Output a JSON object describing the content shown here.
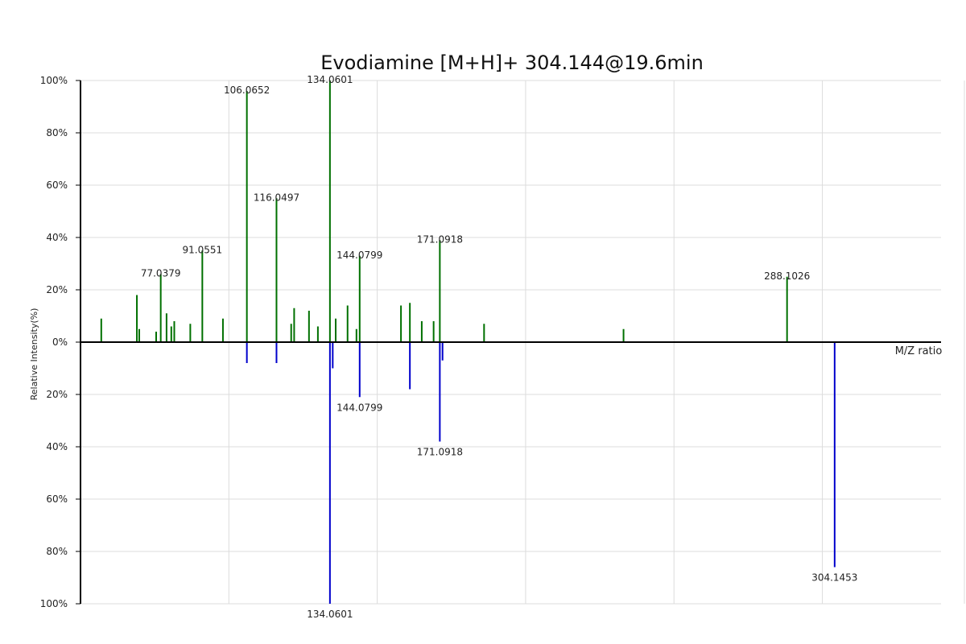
{
  "chart_data": {
    "type": "bar",
    "title": "Evodiamine [M+H]+ 304.144@19.6min",
    "xlabel": "M/Z ratio",
    "ylabel": "Relative Intensity(%)",
    "xlim": [
      50,
      340
    ],
    "ylim": [
      -100,
      100
    ],
    "y_ticks": [
      "100%",
      "80%",
      "60%",
      "40%",
      "20%",
      "0%",
      "20%",
      "40%",
      "60%",
      "80%",
      "100%"
    ],
    "grid": true,
    "colors": {
      "top": "#007000",
      "bottom": "#0000cc"
    },
    "series": [
      {
        "name": "",
        "direction": "up",
        "points": [
          {
            "mz": 57.0,
            "intensity": 9
          },
          {
            "mz": 69.0,
            "intensity": 18
          },
          {
            "mz": 69.8,
            "intensity": 5
          },
          {
            "mz": 75.5,
            "intensity": 4
          },
          {
            "mz": 77.0379,
            "intensity": 26,
            "label": "77.0379"
          },
          {
            "mz": 79.0,
            "intensity": 11
          },
          {
            "mz": 80.6,
            "intensity": 6
          },
          {
            "mz": 81.6,
            "intensity": 8
          },
          {
            "mz": 87.0,
            "intensity": 7
          },
          {
            "mz": 91.0551,
            "intensity": 35,
            "label": "91.0551"
          },
          {
            "mz": 98.0,
            "intensity": 9
          },
          {
            "mz": 106.0652,
            "intensity": 96,
            "label": "106.0652"
          },
          {
            "mz": 116.0497,
            "intensity": 55,
            "label": "116.0497"
          },
          {
            "mz": 121.0,
            "intensity": 7
          },
          {
            "mz": 122.0,
            "intensity": 13
          },
          {
            "mz": 127.0,
            "intensity": 12
          },
          {
            "mz": 130.0,
            "intensity": 6
          },
          {
            "mz": 134.0601,
            "intensity": 100,
            "label": "134.0601"
          },
          {
            "mz": 136.0,
            "intensity": 9
          },
          {
            "mz": 140.0,
            "intensity": 14
          },
          {
            "mz": 143.0,
            "intensity": 5
          },
          {
            "mz": 144.0799,
            "intensity": 33,
            "label": "144.0799"
          },
          {
            "mz": 158.0,
            "intensity": 14
          },
          {
            "mz": 161.0,
            "intensity": 15
          },
          {
            "mz": 165.0,
            "intensity": 8
          },
          {
            "mz": 169.0,
            "intensity": 8
          },
          {
            "mz": 171.0918,
            "intensity": 39,
            "label": "171.0918"
          },
          {
            "mz": 186.0,
            "intensity": 7
          },
          {
            "mz": 233.0,
            "intensity": 5
          },
          {
            "mz": 288.1026,
            "intensity": 25,
            "label": "288.1026"
          }
        ]
      },
      {
        "name": "",
        "direction": "down",
        "points": [
          {
            "mz": 106.0652,
            "intensity": 8
          },
          {
            "mz": 116.0497,
            "intensity": 8
          },
          {
            "mz": 134.0601,
            "intensity": 100,
            "label": "134.0601"
          },
          {
            "mz": 135.0,
            "intensity": 10
          },
          {
            "mz": 144.0799,
            "intensity": 21,
            "label": "144.0799"
          },
          {
            "mz": 161.0,
            "intensity": 18
          },
          {
            "mz": 171.0918,
            "intensity": 38,
            "label": "171.0918"
          },
          {
            "mz": 172.0,
            "intensity": 7
          },
          {
            "mz": 304.1453,
            "intensity": 86,
            "label": "304.1453"
          }
        ]
      }
    ]
  }
}
